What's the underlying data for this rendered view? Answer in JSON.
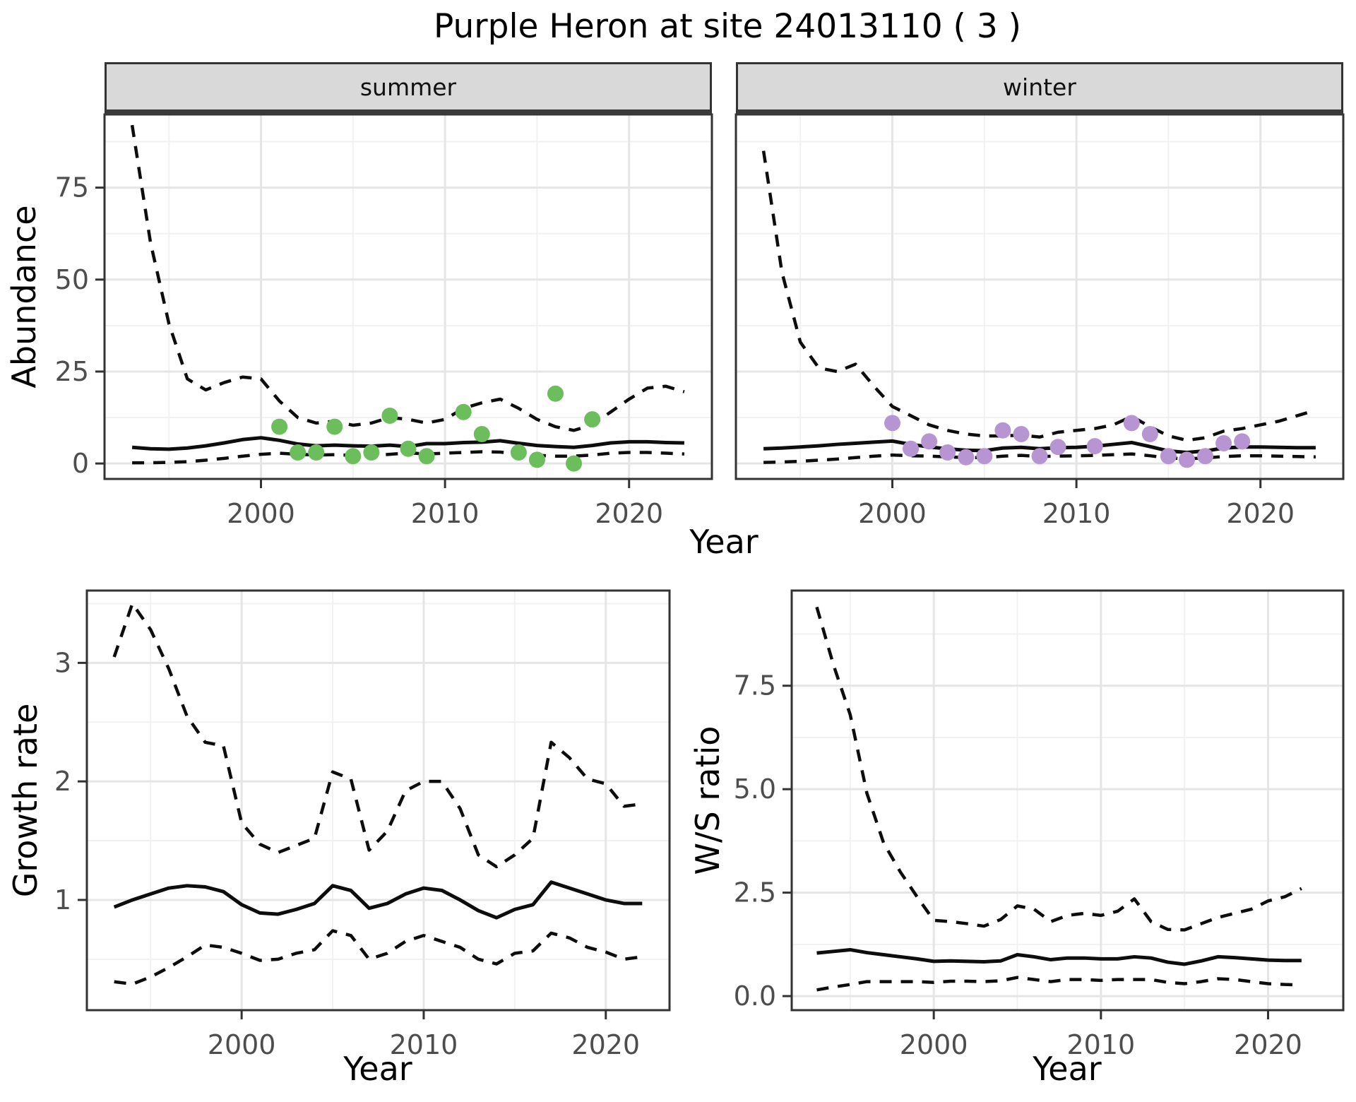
{
  "title": "Purple Heron at site 24013110 ( 3 )",
  "colors": {
    "summer_point": "#6cbe5c",
    "winter_point": "#b795d3",
    "line": "#0d0d0d",
    "strip_bg": "#d9d9d9",
    "panel_border": "#333333",
    "grid_major": "#e5e5e5",
    "grid_minor": "#f1f1f1",
    "tick_label": "#4d4d4d"
  },
  "chart_data": [
    {
      "id": "abundance",
      "type": "line",
      "xlabel": "Year",
      "ylabel": "Abundance",
      "legend_position": "none",
      "grid": true,
      "x_ticks": [
        2000,
        2010,
        2020
      ],
      "x_minor": [
        1995,
        2005,
        2015
      ],
      "y_ticks": [
        0,
        25,
        50,
        75
      ],
      "y_tick_labels": [
        "0",
        "25",
        "50",
        "75"
      ],
      "y_minor": [
        12.5,
        37.5,
        62.5,
        87.5
      ],
      "xlim": [
        1991.5,
        2024.5
      ],
      "ylim": [
        -4.2,
        94.9
      ],
      "years": [
        1993,
        1994,
        1995,
        1996,
        1997,
        1998,
        1999,
        2000,
        2001,
        2002,
        2003,
        2004,
        2005,
        2006,
        2007,
        2008,
        2009,
        2010,
        2011,
        2012,
        2013,
        2014,
        2015,
        2016,
        2017,
        2018,
        2019,
        2020,
        2021,
        2022,
        2023
      ],
      "facets": [
        {
          "label": "summer",
          "point_color": "#6cbe5c",
          "upper95": [
            92,
            60,
            38,
            23,
            20,
            22,
            23.5,
            23,
            17,
            12.5,
            11,
            11.5,
            10.4,
            11,
            12.5,
            12,
            11,
            12,
            15,
            16.5,
            17.5,
            15,
            12,
            10,
            9,
            10.5,
            14,
            17.5,
            20.5,
            21,
            19.5
          ],
          "mean": [
            4.4,
            4.0,
            3.9,
            4.2,
            4.8,
            5.6,
            6.5,
            7.0,
            6.3,
            5.3,
            4.8,
            5.0,
            4.8,
            4.7,
            5.0,
            4.6,
            5.4,
            5.4,
            5.7,
            5.8,
            6.2,
            5.5,
            4.9,
            4.6,
            4.4,
            4.9,
            5.6,
            5.9,
            5.9,
            5.7,
            5.6
          ],
          "lower95": [
            0.2,
            0.2,
            0.3,
            0.5,
            0.9,
            1.4,
            2.0,
            2.5,
            2.8,
            2.5,
            2.3,
            2.4,
            2.2,
            2.2,
            2.5,
            2.9,
            2.6,
            2.8,
            3.0,
            3.2,
            3.1,
            2.6,
            2.2,
            2.0,
            2.0,
            2.3,
            2.8,
            3.0,
            3.0,
            2.8,
            2.6
          ],
          "observations": [
            [
              2001,
              10
            ],
            [
              2002,
              3
            ],
            [
              2003,
              3
            ],
            [
              2004,
              10
            ],
            [
              2005,
              2
            ],
            [
              2006,
              3
            ],
            [
              2007,
              13
            ],
            [
              2008,
              4
            ],
            [
              2009,
              2
            ],
            [
              2011,
              14
            ],
            [
              2012,
              8
            ],
            [
              2014,
              3
            ],
            [
              2015,
              1
            ],
            [
              2016,
              19
            ],
            [
              2017,
              0
            ],
            [
              2018,
              12
            ]
          ]
        },
        {
          "label": "winter",
          "point_color": "#b795d3",
          "upper95": [
            85,
            52,
            33,
            26,
            25,
            27,
            21,
            15.5,
            13,
            10.5,
            9,
            8,
            7.5,
            7.5,
            7.7,
            7.2,
            8.5,
            9,
            9.5,
            10.5,
            12.8,
            10,
            7.5,
            6.3,
            7,
            8.8,
            9.5,
            10.5,
            11.5,
            13,
            14.5
          ],
          "mean": [
            4.0,
            4.2,
            4.5,
            4.8,
            5.2,
            5.5,
            5.8,
            6.1,
            5.2,
            4.5,
            4.0,
            3.6,
            3.5,
            4.2,
            4.4,
            4.0,
            4.3,
            4.4,
            4.7,
            5.2,
            5.7,
            4.6,
            3.4,
            3.0,
            3.4,
            4.2,
            4.5,
            4.5,
            4.4,
            4.3,
            4.3
          ],
          "lower95": [
            0.3,
            0.4,
            0.6,
            0.9,
            1.2,
            1.6,
            2.0,
            2.3,
            2.1,
            2.0,
            1.8,
            1.6,
            1.6,
            2.0,
            2.2,
            1.9,
            2.0,
            2.1,
            2.2,
            2.4,
            2.6,
            2.1,
            1.5,
            1.3,
            1.5,
            1.9,
            2.1,
            2.1,
            2.0,
            1.9,
            1.8
          ],
          "observations": [
            [
              2000,
              11
            ],
            [
              2001,
              4
            ],
            [
              2002,
              6
            ],
            [
              2003,
              3
            ],
            [
              2004,
              1.7
            ],
            [
              2005,
              2
            ],
            [
              2006,
              9
            ],
            [
              2007,
              8
            ],
            [
              2008,
              2
            ],
            [
              2009,
              4.5
            ],
            [
              2011,
              4.7
            ],
            [
              2013,
              11
            ],
            [
              2014,
              8
            ],
            [
              2015,
              2
            ],
            [
              2016,
              1
            ],
            [
              2017,
              2
            ],
            [
              2018,
              5.5
            ],
            [
              2019,
              6
            ]
          ]
        }
      ]
    },
    {
      "id": "growth",
      "type": "line",
      "xlabel": "Year",
      "ylabel": "Growth rate",
      "grid": true,
      "x_ticks": [
        2000,
        2010,
        2020
      ],
      "x_minor": [
        1995,
        2005,
        2015
      ],
      "y_ticks": [
        1,
        2,
        3
      ],
      "y_tick_labels": [
        "1",
        "2",
        "3"
      ],
      "y_minor": [
        0.5,
        1.5,
        2.5,
        3.5
      ],
      "xlim": [
        1991.5,
        2023.5
      ],
      "ylim": [
        0.07,
        3.61
      ],
      "years": [
        1993,
        1994,
        1995,
        1996,
        1997,
        1998,
        1999,
        2000,
        2001,
        2002,
        2003,
        2004,
        2005,
        2006,
        2007,
        2008,
        2009,
        2010,
        2011,
        2012,
        2013,
        2014,
        2015,
        2016,
        2017,
        2018,
        2019,
        2020,
        2021,
        2022
      ],
      "series": {
        "upper95": [
          3.05,
          3.5,
          3.28,
          2.95,
          2.55,
          2.33,
          2.3,
          1.65,
          1.47,
          1.4,
          1.46,
          1.52,
          2.08,
          2.02,
          1.42,
          1.58,
          1.92,
          2.0,
          2.0,
          1.77,
          1.38,
          1.28,
          1.38,
          1.52,
          2.33,
          2.2,
          2.02,
          1.98,
          1.79,
          1.81
        ],
        "mean": [
          0.94,
          1.0,
          1.05,
          1.1,
          1.12,
          1.11,
          1.07,
          0.96,
          0.89,
          0.88,
          0.92,
          0.97,
          1.12,
          1.08,
          0.93,
          0.97,
          1.05,
          1.1,
          1.08,
          1.0,
          0.91,
          0.85,
          0.92,
          0.96,
          1.15,
          1.1,
          1.05,
          1.0,
          0.97,
          0.97
        ],
        "lower95": [
          0.31,
          0.29,
          0.35,
          0.43,
          0.52,
          0.62,
          0.6,
          0.55,
          0.49,
          0.5,
          0.55,
          0.58,
          0.74,
          0.7,
          0.5,
          0.55,
          0.65,
          0.7,
          0.65,
          0.6,
          0.5,
          0.46,
          0.55,
          0.57,
          0.72,
          0.68,
          0.6,
          0.56,
          0.5,
          0.52
        ]
      }
    },
    {
      "id": "ws",
      "type": "line",
      "xlabel": "Year",
      "ylabel": "W/S ratio",
      "grid": true,
      "x_ticks": [
        2000,
        2010,
        2020
      ],
      "x_minor": [
        1995,
        2005,
        2015
      ],
      "y_ticks": [
        0,
        2.5,
        5,
        7.5
      ],
      "y_tick_labels": [
        "0.0",
        "2.5",
        "5.0",
        "7.5"
      ],
      "y_minor": [
        1.25,
        3.75,
        6.25,
        8.75
      ],
      "xlim": [
        1991.5,
        2024.5
      ],
      "ylim": [
        -0.34,
        9.8
      ],
      "years": [
        1993,
        1994,
        1995,
        1996,
        1997,
        1998,
        1999,
        2000,
        2001,
        2002,
        2003,
        2004,
        2005,
        2006,
        2007,
        2008,
        2009,
        2010,
        2011,
        2012,
        2013,
        2014,
        2015,
        2016,
        2017,
        2018,
        2019,
        2020,
        2021,
        2022
      ],
      "series": {
        "upper95": [
          9.4,
          8.0,
          6.8,
          4.9,
          3.7,
          3.0,
          2.4,
          1.83,
          1.8,
          1.75,
          1.69,
          1.85,
          2.18,
          2.1,
          1.8,
          1.95,
          2.0,
          1.95,
          2.05,
          2.35,
          1.8,
          1.61,
          1.6,
          1.75,
          1.9,
          2.0,
          2.1,
          2.3,
          2.4,
          2.6
        ],
        "mean": [
          1.04,
          1.08,
          1.12,
          1.05,
          1.0,
          0.95,
          0.9,
          0.84,
          0.85,
          0.84,
          0.83,
          0.85,
          1.0,
          0.95,
          0.88,
          0.92,
          0.92,
          0.9,
          0.9,
          0.95,
          0.92,
          0.82,
          0.77,
          0.85,
          0.95,
          0.93,
          0.9,
          0.87,
          0.86,
          0.86
        ],
        "lower95": [
          0.15,
          0.22,
          0.28,
          0.35,
          0.35,
          0.35,
          0.35,
          0.33,
          0.36,
          0.36,
          0.35,
          0.37,
          0.45,
          0.4,
          0.35,
          0.4,
          0.4,
          0.38,
          0.4,
          0.4,
          0.4,
          0.33,
          0.3,
          0.35,
          0.42,
          0.4,
          0.35,
          0.3,
          0.28,
          0.27
        ]
      }
    }
  ]
}
